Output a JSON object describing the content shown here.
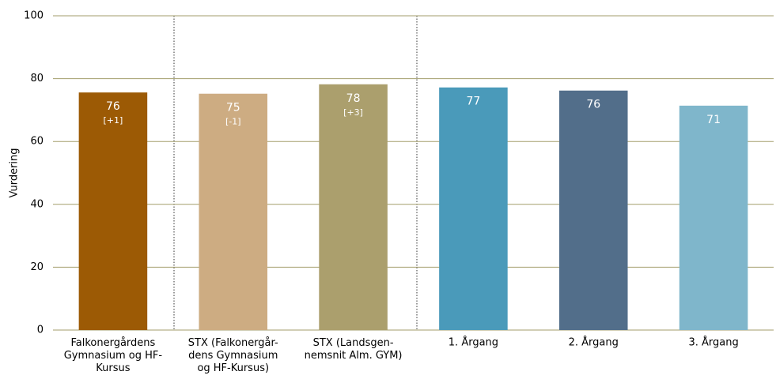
{
  "chart_data": {
    "type": "bar",
    "categories": [
      "Falkonergårdens\nGymnasium og HF-\nKursus",
      "STX (Falkonergår-\ndens Gymnasium\nog HF-Kursus)",
      "STX (Landsgen-\nnemsnit Alm. GYM)",
      "1. Årgang",
      "2. Årgang",
      "3. Årgang"
    ],
    "values": [
      75.6,
      75.2,
      78.2,
      77.2,
      76.2,
      71.4
    ],
    "value_labels": [
      "76",
      "75",
      "78",
      "77",
      "76",
      "71"
    ],
    "change_labels": [
      "[+1]",
      "[-1]",
      "[+3]",
      null,
      null,
      null
    ],
    "colors": [
      "#9c5a05",
      "#cdac82",
      "#ab9f6d",
      "#4a9aba",
      "#526e8a",
      "#7fb6cb"
    ],
    "ylabel": "Vurdering",
    "ylim": [
      0,
      100
    ],
    "yticks": [
      0,
      20,
      40,
      60,
      80,
      100
    ],
    "grid": true
  }
}
